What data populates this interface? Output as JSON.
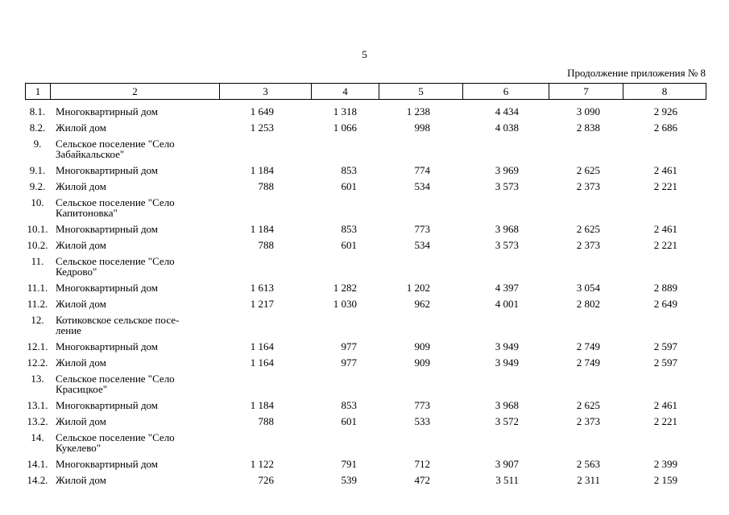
{
  "header": {
    "page_number": "5",
    "caption": "Продолжение приложения № 8"
  },
  "table": {
    "columns": [
      "1",
      "2",
      "3",
      "4",
      "5",
      "6",
      "7",
      "8"
    ],
    "rows": [
      [
        "8.1.",
        "Многоквартирный дом",
        "1 649",
        "1 318",
        "1 238",
        "4 434",
        "3 090",
        "2 926"
      ],
      [
        "8.2.",
        "Жилой дом",
        "1 253",
        "1 066",
        "998",
        "4 038",
        "2 838",
        "2 686"
      ],
      [
        "9.",
        "Сельское поселение \"Село\nЗабайкальское\""
      ],
      [
        "9.1.",
        "Многоквартирный дом",
        "1 184",
        "853",
        "774",
        "3 969",
        "2 625",
        "2 461"
      ],
      [
        "9.2.",
        "Жилой дом",
        "788",
        "601",
        "534",
        "3 573",
        "2 373",
        "2 221"
      ],
      [
        "10.",
        "Сельское поселение \"Село\nКапитоновка\""
      ],
      [
        "10.1.",
        "Многоквартирный дом",
        "1 184",
        "853",
        "773",
        "3 968",
        "2 625",
        "2 461"
      ],
      [
        "10.2.",
        "Жилой дом",
        "788",
        "601",
        "534",
        "3 573",
        "2 373",
        "2 221"
      ],
      [
        "11.",
        "Сельское поселение \"Село\nКедрово\""
      ],
      [
        "11.1.",
        "Многоквартирный дом",
        "1 613",
        "1 282",
        "1 202",
        "4 397",
        "3 054",
        "2 889"
      ],
      [
        "11.2.",
        "Жилой дом",
        "1 217",
        "1 030",
        "962",
        "4 001",
        "2 802",
        "2 649"
      ],
      [
        "12.",
        "Котиковское сельское посе-\nление"
      ],
      [
        "12.1.",
        "Многоквартирный дом",
        "1 164",
        "977",
        "909",
        "3 949",
        "2 749",
        "2 597"
      ],
      [
        "12.2.",
        "Жилой дом",
        "1 164",
        "977",
        "909",
        "3 949",
        "2 749",
        "2 597"
      ],
      [
        "13.",
        "Сельское поселение \"Село\nКрасицкое\""
      ],
      [
        "13.1.",
        "Многоквартирный дом",
        "1 184",
        "853",
        "773",
        "3 968",
        "2 625",
        "2 461"
      ],
      [
        "13.2.",
        "Жилой дом",
        "788",
        "601",
        "533",
        "3 572",
        "2 373",
        "2 221"
      ],
      [
        "14.",
        "Сельское поселение \"Село\nКукелево\""
      ],
      [
        "14.1.",
        "Многоквартирный дом",
        "1 122",
        "791",
        "712",
        "3 907",
        "2 563",
        "2 399"
      ],
      [
        "14.2.",
        "Жилой дом",
        "726",
        "539",
        "472",
        "3 511",
        "2 311",
        "2 159"
      ]
    ]
  }
}
